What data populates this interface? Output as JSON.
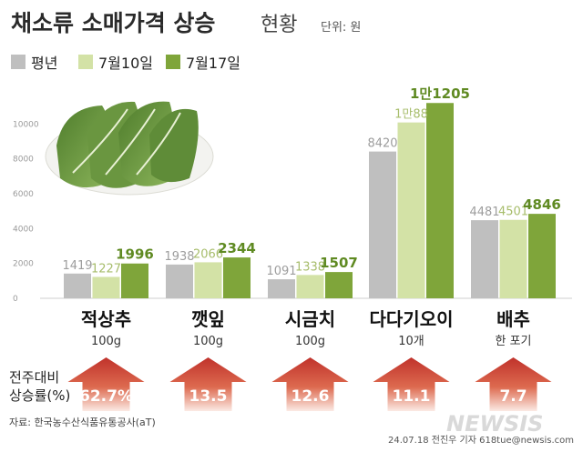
{
  "header": {
    "title_bold": "채소류 소매가격 상승",
    "title_light": "현황",
    "unit": "단위: 원"
  },
  "legend": [
    {
      "label": "평년",
      "color": "#bfbfbf"
    },
    {
      "label": "7월10일",
      "color": "#d3e2a6"
    },
    {
      "label": "7월17일",
      "color": "#7fa53a"
    }
  ],
  "chart_data": {
    "type": "bar",
    "ylim": [
      0,
      12000
    ],
    "yticks": [
      "0",
      "2000",
      "4000",
      "6000",
      "8000",
      "10000"
    ],
    "categories": [
      "적상추",
      "깻잎",
      "시금치",
      "다다기오이",
      "배추"
    ],
    "units": [
      "100g",
      "100g",
      "100g",
      "10개",
      "한 포기"
    ],
    "series": [
      {
        "name": "평년",
        "values": [
          1419,
          1938,
          1091,
          8420,
          4481
        ],
        "labels": [
          "1419",
          "1938",
          "1091",
          "8420",
          "4481"
        ]
      },
      {
        "name": "7월10일",
        "values": [
          1227,
          2066,
          1338,
          10088,
          4501
        ],
        "labels": [
          "1227",
          "2066",
          "1338",
          "1만88",
          "4501"
        ]
      },
      {
        "name": "7월17일",
        "values": [
          1996,
          2344,
          1507,
          11205,
          4846
        ],
        "labels": [
          "1996",
          "2344",
          "1507",
          "1만1205",
          "4846"
        ]
      }
    ],
    "change_label": [
      "전주대비",
      "상승률(%)"
    ],
    "change_values": [
      "62.7%",
      "13.5",
      "12.6",
      "11.1",
      "7.7"
    ]
  },
  "footer": {
    "source": "자료: 한국농수산식품유통공사(aT)",
    "credit": "24.07.18 전진우 기자 618tue@newsis.com",
    "logo": "NEWSIS"
  }
}
